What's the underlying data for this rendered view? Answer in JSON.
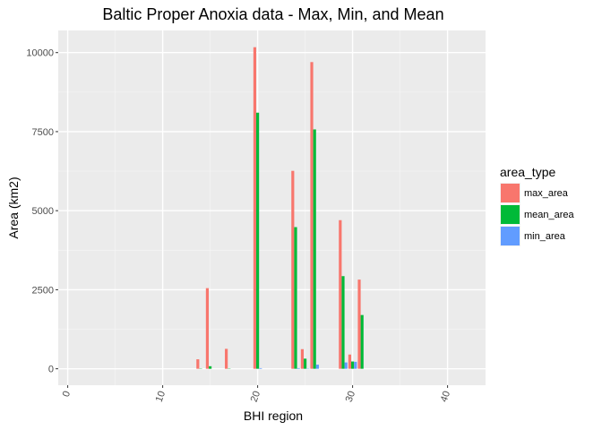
{
  "chart_data": {
    "type": "bar",
    "title": "Baltic Proper Anoxia data - Max, Min, and Mean",
    "xlabel": "BHI region",
    "ylabel": "Area (km2)",
    "xlim": [
      -1,
      44
    ],
    "ylim": [
      -520,
      10700
    ],
    "x_ticks": [
      0,
      10,
      20,
      30,
      40
    ],
    "x_tick_labels": [
      "0",
      "10",
      "20",
      "30",
      "40"
    ],
    "y_ticks": [
      0,
      2500,
      5000,
      7500,
      10000
    ],
    "y_tick_labels": [
      "0",
      "2500",
      "5000",
      "7500",
      "10000"
    ],
    "grid": true,
    "legend_position": "right",
    "legend_title": "area_type",
    "series": [
      {
        "name": "max_area",
        "color": "#F8766D",
        "points": [
          {
            "x": 14,
            "y": 300
          },
          {
            "x": 15,
            "y": 2550
          },
          {
            "x": 17,
            "y": 630
          },
          {
            "x": 20,
            "y": 10170
          },
          {
            "x": 24,
            "y": 6260
          },
          {
            "x": 25,
            "y": 620
          },
          {
            "x": 26,
            "y": 9700
          },
          {
            "x": 29,
            "y": 4700
          },
          {
            "x": 30,
            "y": 450
          },
          {
            "x": 31,
            "y": 2820
          }
        ]
      },
      {
        "name": "mean_area",
        "color": "#00BA38",
        "points": [
          {
            "x": 14,
            "y": 10
          },
          {
            "x": 15,
            "y": 80
          },
          {
            "x": 17,
            "y": 10
          },
          {
            "x": 20,
            "y": 8100
          },
          {
            "x": 24,
            "y": 4480
          },
          {
            "x": 25,
            "y": 320
          },
          {
            "x": 26,
            "y": 7570
          },
          {
            "x": 29,
            "y": 2930
          },
          {
            "x": 30,
            "y": 230
          },
          {
            "x": 31,
            "y": 1700
          }
        ]
      },
      {
        "name": "min_area",
        "color": "#619CFF",
        "points": [
          {
            "x": 14,
            "y": 0
          },
          {
            "x": 15,
            "y": 0
          },
          {
            "x": 17,
            "y": 0
          },
          {
            "x": 20,
            "y": 20
          },
          {
            "x": 24,
            "y": 20
          },
          {
            "x": 25,
            "y": 10
          },
          {
            "x": 26,
            "y": 130
          },
          {
            "x": 29,
            "y": 200
          },
          {
            "x": 30,
            "y": 220
          },
          {
            "x": 31,
            "y": 0
          }
        ]
      }
    ]
  }
}
